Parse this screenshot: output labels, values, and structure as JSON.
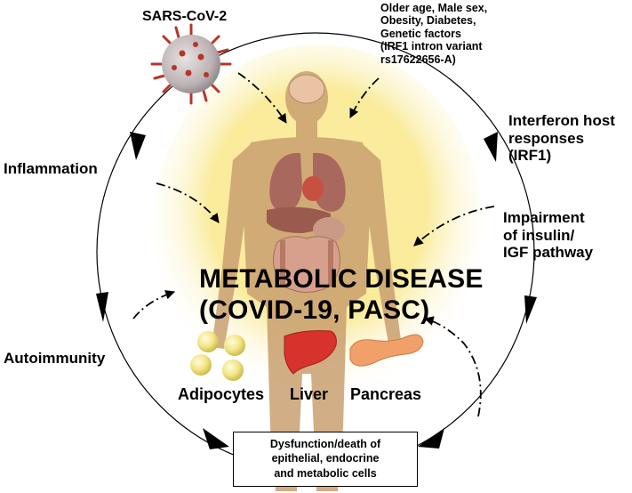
{
  "labels": {
    "virus": "SARS-CoV-2",
    "risk_factors": "Older age, Male sex,\nObesity, Diabetes,\nGenetic factors\n(IRF1 intron variant\nrs17622656-A)",
    "interferon": "Interferon host\nresponses\n(IRF1)",
    "inflammation": "Inflammation",
    "insulin": "Impairment\nof insulin/\nIGF pathway",
    "autoimmunity": "Autoimmunity",
    "title": "METABOLIC DISEASE\n(COVID-19, PASC)",
    "adipocytes": "Adipocytes",
    "liver": "Liver",
    "pancreas": "Pancreas",
    "outcome": "Dysfunction/death of\nepithelial, endocrine\nand metabolic cells"
  },
  "colors": {
    "glow": "#f8e57a",
    "body": "#c9a070",
    "virus": "#b5352c",
    "liver": "#d8322c",
    "pancreas": "#f1a06a",
    "adipocyte": "#f3e585"
  }
}
